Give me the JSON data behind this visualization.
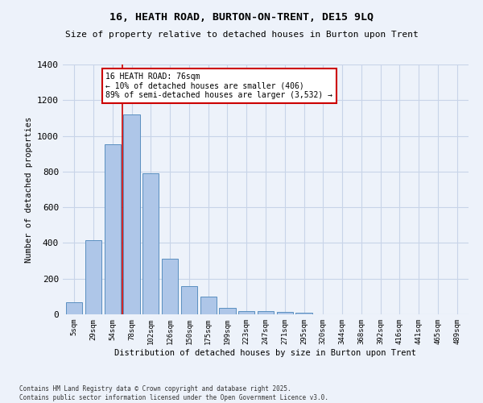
{
  "title": "16, HEATH ROAD, BURTON-ON-TRENT, DE15 9LQ",
  "subtitle": "Size of property relative to detached houses in Burton upon Trent",
  "xlabel": "Distribution of detached houses by size in Burton upon Trent",
  "ylabel": "Number of detached properties",
  "categories": [
    "5sqm",
    "29sqm",
    "54sqm",
    "78sqm",
    "102sqm",
    "126sqm",
    "150sqm",
    "175sqm",
    "199sqm",
    "223sqm",
    "247sqm",
    "271sqm",
    "295sqm",
    "320sqm",
    "344sqm",
    "368sqm",
    "392sqm",
    "416sqm",
    "441sqm",
    "465sqm",
    "489sqm"
  ],
  "values": [
    70,
    415,
    955,
    1120,
    790,
    310,
    160,
    100,
    35,
    20,
    20,
    15,
    10,
    0,
    0,
    0,
    0,
    0,
    0,
    0,
    0
  ],
  "bar_color": "#aec6e8",
  "bar_edge_color": "#5a8fc0",
  "grid_color": "#c8d4e8",
  "background_color": "#edf2fa",
  "red_line_x": 2.5,
  "annotation_text": "16 HEATH ROAD: 76sqm\n← 10% of detached houses are smaller (406)\n89% of semi-detached houses are larger (3,532) →",
  "annotation_box_color": "#ffffff",
  "annotation_box_edge": "#cc0000",
  "ylim": [
    0,
    1400
  ],
  "yticks": [
    0,
    200,
    400,
    600,
    800,
    1000,
    1200,
    1400
  ],
  "footer": "Contains HM Land Registry data © Crown copyright and database right 2025.\nContains public sector information licensed under the Open Government Licence v3.0."
}
